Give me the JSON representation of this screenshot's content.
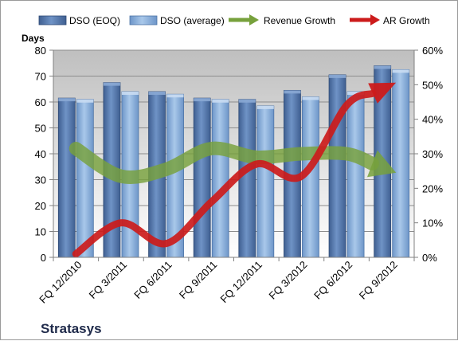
{
  "chart_data": {
    "type": "bar",
    "title": "",
    "company": "Stratasys",
    "ylabel": "Days",
    "ylim": [
      0,
      80
    ],
    "yticks": [
      "0",
      "10",
      "20",
      "30",
      "40",
      "50",
      "60",
      "70",
      "80"
    ],
    "y2lim": [
      0,
      0.6
    ],
    "y2ticks": [
      "0%",
      "10%",
      "20%",
      "30%",
      "40%",
      "50%",
      "60%"
    ],
    "categories": [
      "FQ 12/2010",
      "FQ 3/2011",
      "FQ 6/2011",
      "FQ 9/2011",
      "FQ 12/2011",
      "FQ 3/2012",
      "FQ 6/2012",
      "FQ 9/2012"
    ],
    "series": [
      {
        "name": "DSO (EOQ)",
        "kind": "bar",
        "color": "#5b7fb2",
        "values": [
          61.5,
          67.5,
          64,
          61.5,
          61,
          64.5,
          70.5,
          74
        ]
      },
      {
        "name": "DSO (average)",
        "kind": "bar",
        "color": "#8eb3dd",
        "values": [
          61,
          64,
          63,
          61,
          58.5,
          62,
          64,
          72.5
        ]
      },
      {
        "name": "Revenue Growth",
        "kind": "line",
        "axis": "secondary",
        "color": "#77a13c",
        "values": [
          0.315,
          0.235,
          0.255,
          0.315,
          0.29,
          0.3,
          0.3,
          0.25
        ]
      },
      {
        "name": "AR Growth",
        "kind": "line",
        "axis": "secondary",
        "color": "#cc1b1b",
        "values": [
          0.01,
          0.1,
          0.04,
          0.16,
          0.27,
          0.235,
          0.44,
          0.5
        ]
      }
    ],
    "grid": true,
    "legend": "top"
  }
}
